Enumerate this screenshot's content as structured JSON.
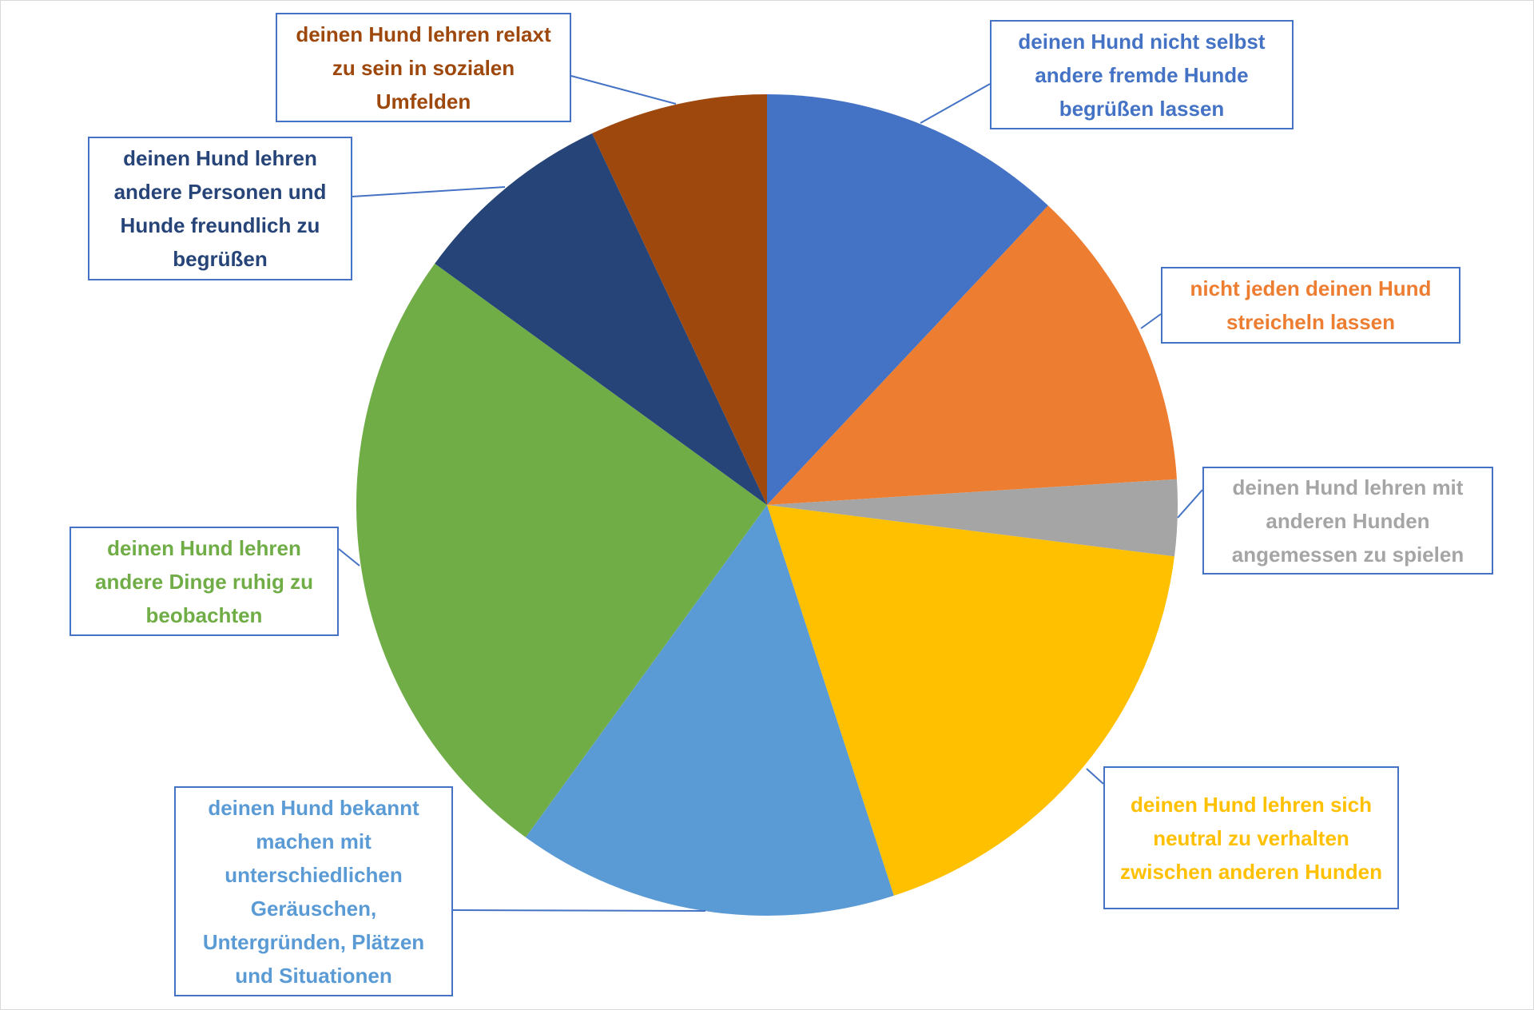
{
  "chart_data": {
    "type": "pie",
    "categories": [
      "deinen Hund nicht selbst andere fremde Hunde begrüßen lassen",
      "nicht jeden deinen Hund streicheln lassen",
      "deinen Hund lehren mit anderen Hunden angemessen zu spielen",
      "deinen Hund lehren sich neutral zu verhalten zwischen anderen Hunden",
      "deinen Hund bekannt machen mit unterschiedlichen Geräuschen, Untergründen, Plätzen und Situationen",
      "deinen Hund lehren andere Dinge ruhig zu beobachten",
      "deinen Hund lehren andere Personen und Hunde freundlich zu begrüßen",
      "deinen Hund lehren relaxt zu sein in sozialen Umfelden"
    ],
    "values": [
      12,
      12,
      3,
      18,
      15,
      25,
      8,
      7
    ],
    "colors": [
      "#4472c4",
      "#ed7d31",
      "#a5a5a5",
      "#ffc000",
      "#5b9bd5",
      "#70ad47",
      "#264478",
      "#9e480e"
    ]
  }
}
